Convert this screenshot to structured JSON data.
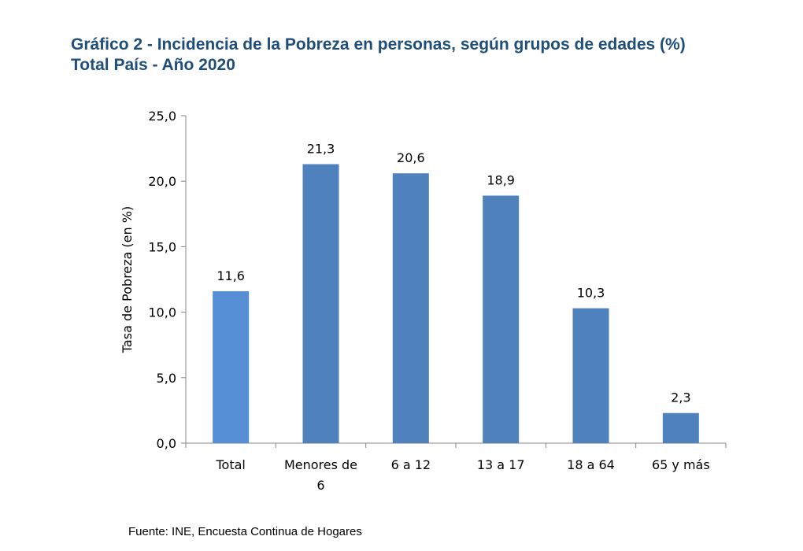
{
  "title": {
    "line1": "Gráfico 2 - Incidencia de la Pobreza en personas, según grupos de edades (%)",
    "line2": "Total País - Año 2020"
  },
  "source": "Fuente: INE, Encuesta Continua de Hogares",
  "colors": {
    "title": "#1F4E79",
    "bar_total": "#558ED5",
    "bar": "#4F81BD",
    "axis": "#868686"
  },
  "chart_data": {
    "type": "bar",
    "title": "",
    "xlabel": "",
    "ylabel": "Tasa de Pobreza (en %)",
    "ylim": [
      0,
      25
    ],
    "yticks": [
      "0,0",
      "5,0",
      "10,0",
      "15,0",
      "20,0",
      "25,0"
    ],
    "grid": false,
    "legend": "none",
    "categories": [
      [
        "Total"
      ],
      [
        "Menores de",
        "6"
      ],
      [
        "6 a 12"
      ],
      [
        "13 a 17"
      ],
      [
        "18 a 64"
      ],
      [
        "65 y más"
      ]
    ],
    "values": [
      11.6,
      21.3,
      20.6,
      18.9,
      10.3,
      2.3
    ],
    "value_labels": [
      "11,6",
      "21,3",
      "20,6",
      "18,9",
      "10,3",
      "2,3"
    ]
  }
}
